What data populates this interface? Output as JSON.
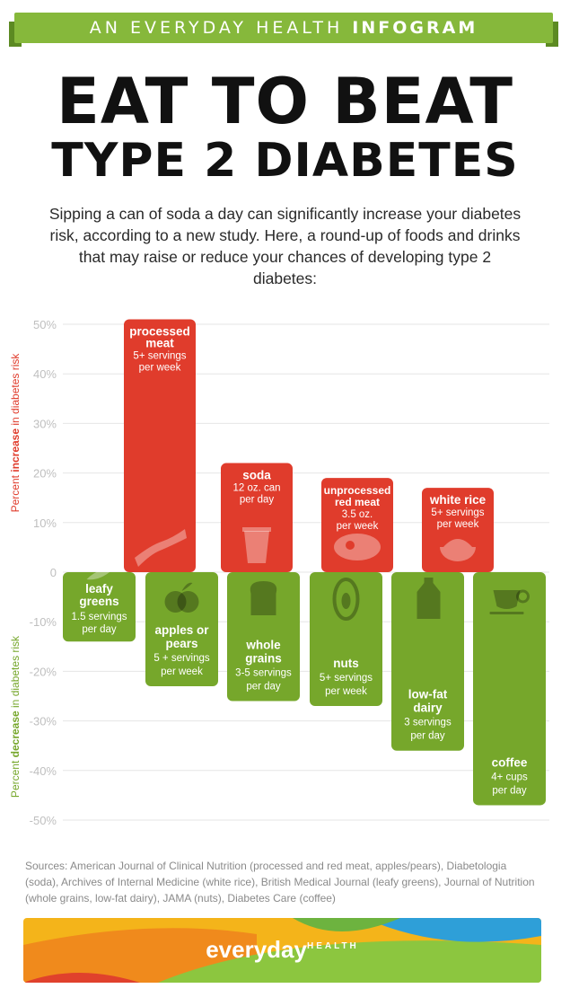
{
  "header": {
    "banner_prefix": "AN EVERYDAY HEALTH ",
    "banner_bold": "INFOGRAM",
    "title_line1": "EAT TO BEAT",
    "title_line2": "TYPE 2 DIABETES",
    "intro": "Sipping a can of soda a day can significantly increase your diabetes risk, according to a new study. Here, a round-up of foods and drinks that may raise or reduce your chances of developing type 2 diabetes:"
  },
  "colors": {
    "increase": "#e03c2c",
    "decrease": "#76a72b",
    "banner": "#86b83b",
    "axis_text": "#bfbfbf"
  },
  "chart_data": {
    "type": "bar",
    "ylim": [
      -50,
      50
    ],
    "yticks": [
      "50%",
      "40%",
      "30%",
      "20%",
      "10%",
      "0",
      "-10%",
      "-20%",
      "-30%",
      "-40%",
      "-50%"
    ],
    "ylabel_increase": {
      "pre": "Percent ",
      "bold": "increase",
      "post": " in diabetes risk"
    },
    "ylabel_decrease": {
      "pre": "Percent ",
      "bold": "decrease",
      "post": " in diabetes risk"
    },
    "grid": true,
    "increase_series": [
      {
        "label": [
          "processed",
          "meat"
        ],
        "detail": [
          "5+ servings",
          "per week"
        ],
        "value": 51,
        "icon": "bacon-icon"
      },
      {
        "label": [
          "soda"
        ],
        "detail": [
          "12 oz. can",
          "per day"
        ],
        "value": 22,
        "icon": "soda-cup-icon"
      },
      {
        "label": [
          "unprocessed",
          "red meat"
        ],
        "detail": [
          "3.5 oz.",
          "per week"
        ],
        "value": 19,
        "icon": "steak-icon"
      },
      {
        "label": [
          "white rice"
        ],
        "detail": [
          "5+ servings",
          "per week"
        ],
        "value": 17,
        "icon": "rice-bowl-icon"
      }
    ],
    "decrease_series": [
      {
        "label": [
          "leafy",
          "greens"
        ],
        "detail": [
          "1.5 servings",
          "per day"
        ],
        "value": -14,
        "icon": "leaf-icon"
      },
      {
        "label": [
          "apples or",
          "pears"
        ],
        "detail": [
          "5 + servings",
          "per week"
        ],
        "value": -23,
        "icon": "apple-icon"
      },
      {
        "label": [
          "whole",
          "grains"
        ],
        "detail": [
          "3-5 servings",
          "per day"
        ],
        "value": -26,
        "icon": "bread-icon"
      },
      {
        "label": [
          "nuts"
        ],
        "detail": [
          "5+ servings",
          "per week"
        ],
        "value": -27,
        "icon": "nut-icon"
      },
      {
        "label": [
          "low-fat",
          "dairy"
        ],
        "detail": [
          "3 servings",
          "per day"
        ],
        "value": -36,
        "icon": "milk-jug-icon"
      },
      {
        "label": [
          "coffee"
        ],
        "detail": [
          "4+ cups",
          "per day"
        ],
        "value": -47,
        "icon": "coffee-cup-icon"
      }
    ]
  },
  "sources": "Sources: American Journal of Clinical Nutrition (processed and red meat, apples/pears), Diabetologia (soda), Archives of Internal Medicine (white rice), British Medical Journal (leafy greens), Journal of Nutrition (whole grains, low-fat dairy), JAMA (nuts), Diabetes Care (coffee)",
  "footer": {
    "logo_main": "everyday",
    "logo_sub": "HEALTH"
  }
}
